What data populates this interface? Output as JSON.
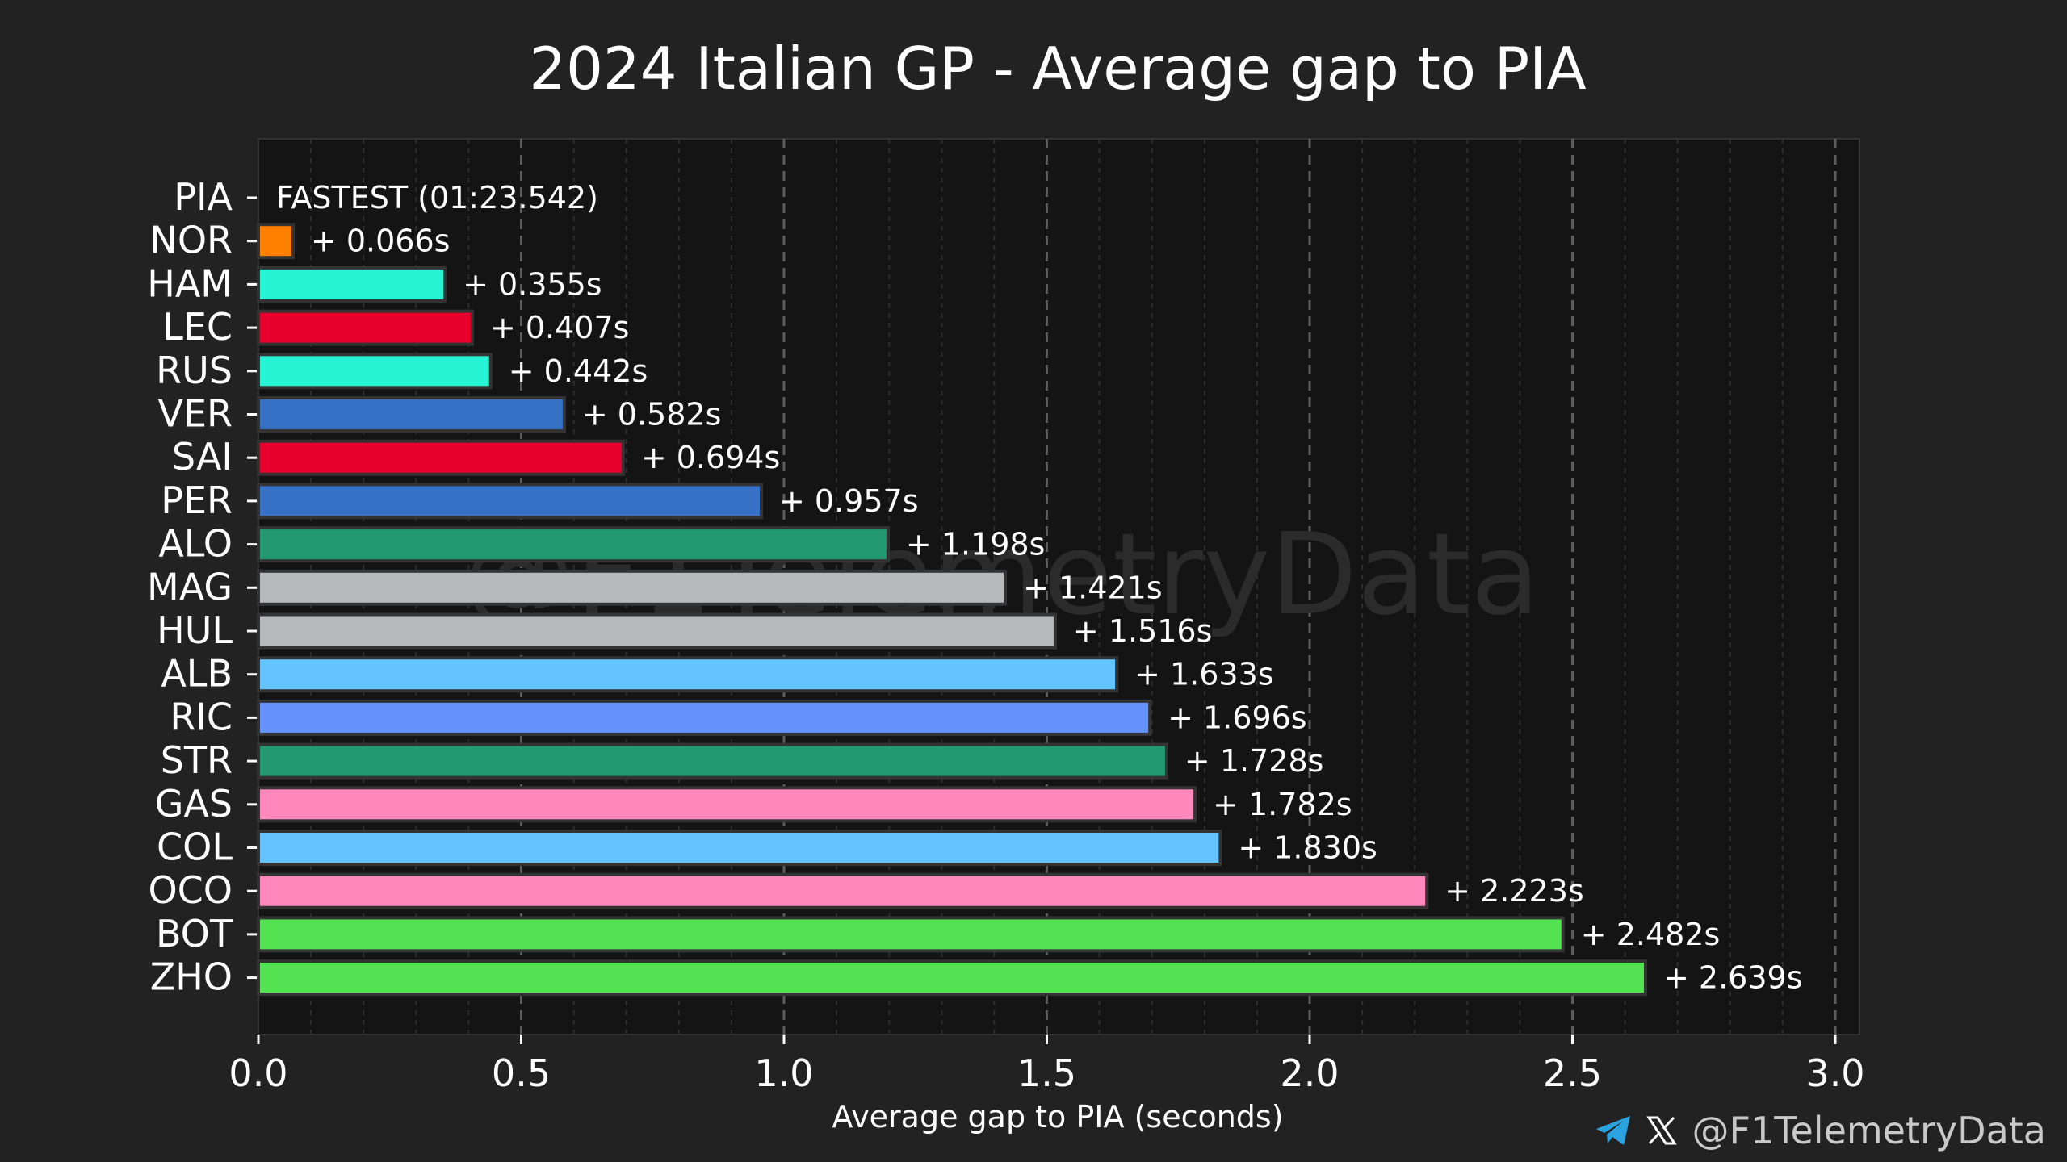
{
  "chart_data": {
    "type": "bar",
    "orientation": "horizontal",
    "title": "2024 Italian GP - Average gap to PIA",
    "xlabel": "Average gap to PIA (seconds)",
    "ylabel": "",
    "xlim": [
      0,
      3.0
    ],
    "x_ticks": [
      "0.0",
      "0.5",
      "1.0",
      "1.5",
      "2.0",
      "2.5",
      "3.0"
    ],
    "x_tick_values": [
      0,
      0.5,
      1.0,
      1.5,
      2.0,
      2.5,
      3.0
    ],
    "grid": true,
    "watermark": "@F1TelemetryData",
    "fastest_label": "FASTEST (01:23.542)",
    "categories": [
      "PIA",
      "NOR",
      "HAM",
      "LEC",
      "RUS",
      "VER",
      "SAI",
      "PER",
      "ALO",
      "MAG",
      "HUL",
      "ALB",
      "RIC",
      "STR",
      "GAS",
      "COL",
      "OCO",
      "BOT",
      "ZHO"
    ],
    "values": [
      0,
      0.066,
      0.355,
      0.407,
      0.442,
      0.582,
      0.694,
      0.957,
      1.198,
      1.421,
      1.516,
      1.633,
      1.696,
      1.728,
      1.782,
      1.83,
      2.223,
      2.482,
      2.639
    ],
    "data_labels": [
      "FASTEST (01:23.542)",
      "+ 0.066s",
      "+ 0.355s",
      "+ 0.407s",
      "+ 0.442s",
      "+ 0.582s",
      "+ 0.694s",
      "+ 0.957s",
      "+ 1.198s",
      "+ 1.421s",
      "+ 1.516s",
      "+ 1.633s",
      "+ 1.696s",
      "+ 1.728s",
      "+ 1.782s",
      "+ 1.830s",
      "+ 2.223s",
      "+ 2.482s",
      "+ 2.639s"
    ],
    "colors": [
      "#ff8000",
      "#ff8000",
      "#27f4d2",
      "#e8002d",
      "#27f4d2",
      "#3671c6",
      "#e8002d",
      "#3671c6",
      "#229971",
      "#b6babd",
      "#b6babd",
      "#64c4ff",
      "#6692ff",
      "#229971",
      "#ff87bc",
      "#64c4ff",
      "#ff87bc",
      "#52e252",
      "#52e252"
    ]
  },
  "footer": {
    "handle": "@F1TelemetryData"
  }
}
